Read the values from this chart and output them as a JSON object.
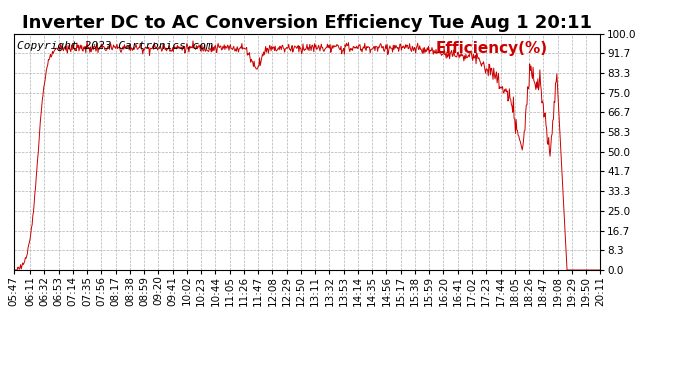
{
  "title": "Inverter DC to AC Conversion Efficiency Tue Aug 1 20:11",
  "copyright_text": "Copyright 2023 Cartronics.com",
  "legend_text": "Efficiency(%)",
  "line_color": "#cc0000",
  "background_color": "#ffffff",
  "grid_color": "#aaaaaa",
  "yticks": [
    0.0,
    8.3,
    16.7,
    25.0,
    33.3,
    41.7,
    50.0,
    58.3,
    66.7,
    75.0,
    83.3,
    91.7,
    100.0
  ],
  "ylim": [
    0,
    100
  ],
  "x_tick_labels": [
    "05:47",
    "06:11",
    "06:32",
    "06:53",
    "07:14",
    "07:35",
    "07:56",
    "08:17",
    "08:38",
    "08:59",
    "09:20",
    "09:41",
    "10:02",
    "10:23",
    "10:44",
    "11:05",
    "11:26",
    "11:47",
    "12:08",
    "12:29",
    "12:50",
    "13:11",
    "13:32",
    "13:53",
    "14:14",
    "14:35",
    "14:56",
    "15:17",
    "15:38",
    "15:59",
    "16:20",
    "16:41",
    "17:02",
    "17:23",
    "17:44",
    "18:05",
    "18:26",
    "18:47",
    "19:08",
    "19:29",
    "19:50",
    "20:11"
  ],
  "title_fontsize": 13,
  "copyright_fontsize": 8,
  "legend_fontsize": 11,
  "tick_fontsize": 7.5
}
